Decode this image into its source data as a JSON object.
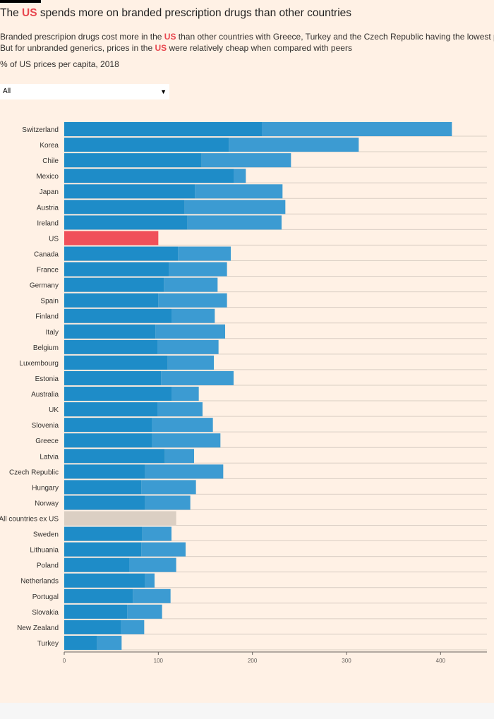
{
  "title": {
    "before": "The ",
    "highlight": "US",
    "after": " spends more on branded prescription drugs than other countries"
  },
  "subtitle_line1": {
    "before": "Branded prescripion drugs cost more in the ",
    "highlight": "US",
    "after": " than other countries with Greece, Turkey and the Czech Republic having the lowest prices."
  },
  "subtitle_line2": {
    "before": "But for unbranded generics, prices in the ",
    "highlight": "US",
    "after": " were relatively cheap when compared with peers"
  },
  "unit_label": "% of US prices per capita, 2018",
  "dropdown": {
    "selected": "All"
  },
  "colors": {
    "background": "#fff1e5",
    "bar_dark": "#1e8cc8",
    "bar_light": "#3c9bd2",
    "us": "#f0505a",
    "all_countries": "#dbcfc3",
    "highlight_text": "#e8474f"
  },
  "chart_data": {
    "type": "bar",
    "orientation": "horizontal",
    "stacked": true,
    "categories": [
      "Switzerland",
      "Korea",
      "Chile",
      "Mexico",
      "Japan",
      "Austria",
      "Ireland",
      "US",
      "Canada",
      "France",
      "Germany",
      "Spain",
      "Finland",
      "Italy",
      "Belgium",
      "Luxembourg",
      "Estonia",
      "Australia",
      "UK",
      "Slovenia",
      "Greece",
      "Latvia",
      "Czech Republic",
      "Hungary",
      "Norway",
      "All countries ex US",
      "Sweden",
      "Lithuania",
      "Poland",
      "Netherlands",
      "Portugal",
      "Slovakia",
      "New Zealand",
      "Turkey"
    ],
    "series": [
      {
        "values": [
          210,
          175,
          146,
          180,
          139,
          128,
          131,
          100,
          121,
          111,
          106,
          100,
          114,
          97,
          99,
          110,
          103,
          114,
          99,
          93,
          93,
          107,
          86,
          82,
          86,
          84,
          83,
          82,
          69,
          86,
          73,
          67,
          60,
          35
        ]
      },
      {
        "values": [
          202,
          138,
          95,
          13,
          93,
          107,
          100,
          0,
          56,
          62,
          57,
          73,
          46,
          74,
          65,
          49,
          77,
          29,
          48,
          65,
          73,
          31,
          83,
          58,
          48,
          35,
          31,
          47,
          50,
          10,
          40,
          37,
          25,
          26
        ]
      }
    ],
    "totals": [
      412,
      313,
      241,
      193,
      232,
      235,
      231,
      100,
      177,
      173,
      163,
      173,
      160,
      171,
      164,
      159,
      180,
      143,
      147,
      158,
      166,
      138,
      169,
      140,
      134,
      119,
      114,
      129,
      119,
      96,
      113,
      104,
      85,
      61
    ],
    "xlim": [
      0,
      450
    ],
    "xticks": [
      0,
      100,
      200,
      300,
      400
    ],
    "grid": true,
    "legend": "none"
  }
}
